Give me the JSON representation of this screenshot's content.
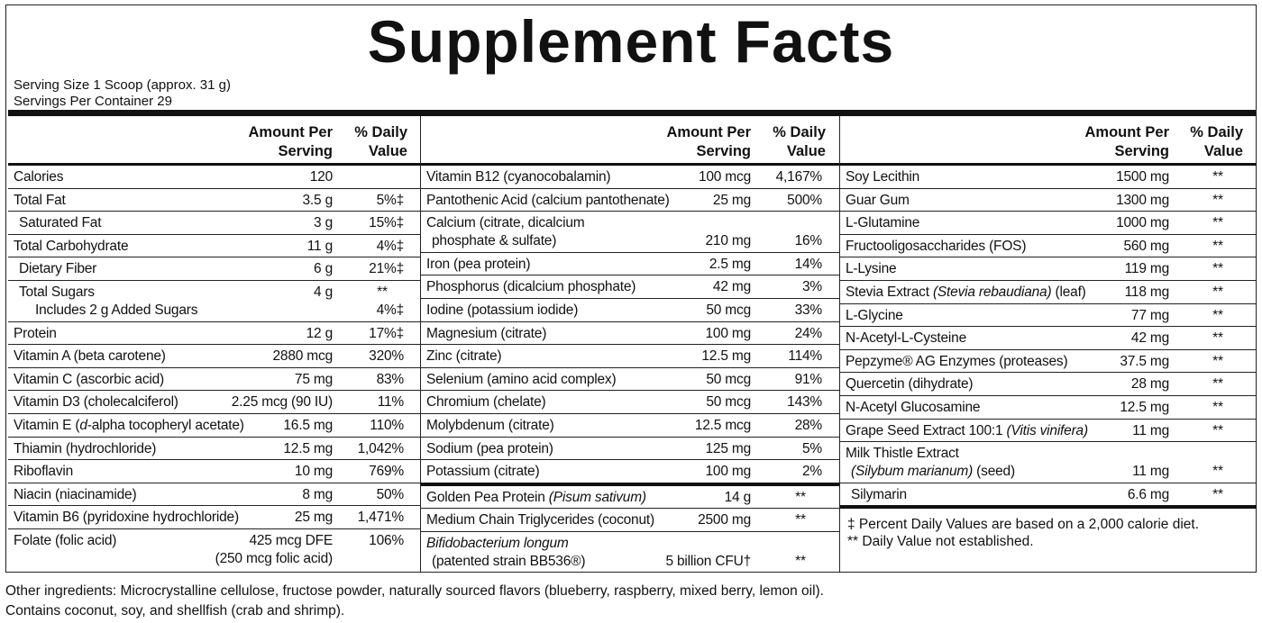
{
  "title": "Supplement Facts",
  "serving_size": "Serving Size 1 Scoop (approx. 31 g)",
  "servings_per_container": "Servings Per Container 29",
  "column_header": {
    "amount": [
      "Amount Per",
      "Serving"
    ],
    "dv": [
      "% Daily",
      "Value"
    ]
  },
  "columns": [
    {
      "sections": [
        [
          {
            "name": "Calories",
            "amount": "120"
          },
          {
            "name": "Total Fat",
            "amount": "3.5 g",
            "dv": "5%‡"
          },
          {
            "name": "Saturated Fat",
            "amount": "3 g",
            "dv": "15%‡",
            "indent": true
          },
          {
            "name": "Total Carbohydrate",
            "amount": "11 g",
            "dv": "4%‡"
          },
          {
            "name": "Dietary Fiber",
            "amount": "6 g",
            "dv": "21%‡",
            "indent": true
          },
          {
            "indent": true,
            "lines": [
              {
                "name": "Total Sugars",
                "amount": "4 g",
                "dv": "**"
              },
              {
                "name": "Includes 2 g Added Sugars",
                "dv": "4%‡"
              }
            ]
          },
          {
            "name": "Protein",
            "amount": "12 g",
            "dv": "17%‡"
          },
          {
            "name": "Vitamin A (beta carotene)",
            "amount": "2880 mcg",
            "dv": "320%"
          },
          {
            "name": "Vitamin C (ascorbic acid)",
            "amount": "75 mg",
            "dv": "83%"
          },
          {
            "name": "Vitamin D3 (cholecalciferol)",
            "amount": "2.25 mcg (90 IU)",
            "dv": "11%"
          },
          {
            "name": [
              {
                "text": "Vitamin E ("
              },
              {
                "text": "d",
                "italic": true
              },
              {
                "text": "-alpha tocopheryl acetate)"
              }
            ],
            "amount": "16.5 mg",
            "dv": "110%"
          },
          {
            "name": "Thiamin (hydrochloride)",
            "amount": "12.5 mg",
            "dv": "1,042%"
          },
          {
            "name": "Riboflavin",
            "amount": "10 mg",
            "dv": "769%"
          },
          {
            "name": "Niacin (niacinamide)",
            "amount": "8 mg",
            "dv": "50%"
          },
          {
            "name": "Vitamin B6 (pyridoxine hydrochloride)",
            "amount": "25 mg",
            "dv": "1,471%"
          },
          {
            "lines": [
              {
                "name": "Folate (folic acid)",
                "amount": "425 mcg DFE",
                "dv": "106%"
              },
              {
                "amount": "(250 mcg folic acid)"
              }
            ]
          }
        ]
      ]
    },
    {
      "sections": [
        [
          {
            "name": "Vitamin B12 (cyanocobalamin)",
            "amount": "100 mcg",
            "dv": "4,167%"
          },
          {
            "name": "Pantothenic Acid (calcium pantothenate)",
            "amount": "25 mg",
            "dv": "500%"
          },
          {
            "lines": [
              {
                "name": "Calcium (citrate, dicalcium"
              },
              {
                "name": "phosphate & sulfate)",
                "amount": "210 mg",
                "dv": "16%"
              }
            ]
          },
          {
            "name": "Iron (pea protein)",
            "amount": "2.5 mg",
            "dv": "14%"
          },
          {
            "name": "Phosphorus (dicalcium phosphate)",
            "amount": "42 mg",
            "dv": "3%"
          },
          {
            "name": "Iodine (potassium iodide)",
            "amount": "50 mcg",
            "dv": "33%"
          },
          {
            "name": "Magnesium (citrate)",
            "amount": "100 mg",
            "dv": "24%"
          },
          {
            "name": "Zinc (citrate)",
            "amount": "12.5 mg",
            "dv": "114%"
          },
          {
            "name": "Selenium (amino acid complex)",
            "amount": "50 mcg",
            "dv": "91%"
          },
          {
            "name": "Chromium (chelate)",
            "amount": "50 mcg",
            "dv": "143%"
          },
          {
            "name": "Molybdenum (citrate)",
            "amount": "12.5 mcg",
            "dv": "28%"
          },
          {
            "name": "Sodium (pea protein)",
            "amount": "125 mg",
            "dv": "5%"
          },
          {
            "name": "Potassium (citrate)",
            "amount": "100 mg",
            "dv": "2%"
          }
        ],
        [
          {
            "name": [
              {
                "text": "Golden Pea Protein "
              },
              {
                "text": "(Pisum sativum)",
                "italic": true
              }
            ],
            "amount": "14 g",
            "dv": "**"
          },
          {
            "name": "Medium Chain Triglycerides (coconut)",
            "amount": "2500 mg",
            "dv": "**"
          },
          {
            "lines": [
              {
                "name": [
                  {
                    "text": "Bifidobacterium longum",
                    "italic": true
                  }
                ]
              },
              {
                "name": "(patented strain BB536®)",
                "amount": "5 billion CFU†",
                "dv": "**"
              }
            ]
          }
        ]
      ]
    },
    {
      "sections": [
        [
          {
            "name": "Soy Lecithin",
            "amount": "1500 mg",
            "dv": "**"
          },
          {
            "name": "Guar Gum",
            "amount": "1300 mg",
            "dv": "**"
          },
          {
            "name": "L-Glutamine",
            "amount": "1000 mg",
            "dv": "**"
          },
          {
            "name": "Fructooligosaccharides (FOS)",
            "amount": "560 mg",
            "dv": "**"
          },
          {
            "name": "L-Lysine",
            "amount": "119 mg",
            "dv": "**"
          },
          {
            "name": [
              {
                "text": "Stevia Extract "
              },
              {
                "text": "(Stevia rebaudiana)",
                "italic": true
              },
              {
                "text": " (leaf)"
              }
            ],
            "amount": "118 mg",
            "dv": "**"
          },
          {
            "name": "L-Glycine",
            "amount": "77 mg",
            "dv": "**"
          },
          {
            "name": "N-Acetyl-L-Cysteine",
            "amount": "42 mg",
            "dv": "**"
          },
          {
            "name": "Pepzyme® AG Enzymes (proteases)",
            "amount": "37.5 mg",
            "dv": "**"
          },
          {
            "name": "Quercetin (dihydrate)",
            "amount": "28 mg",
            "dv": "**"
          },
          {
            "name": "N-Acetyl Glucosamine",
            "amount": "12.5 mg",
            "dv": "**"
          },
          {
            "name": [
              {
                "text": "Grape Seed Extract 100:1 "
              },
              {
                "text": "(Vitis vinifera)",
                "italic": true
              }
            ],
            "amount": "11 mg",
            "dv": "**"
          },
          {
            "lines": [
              {
                "name": "Milk Thistle Extract"
              },
              {
                "name": [
                  {
                    "text": "(Silybum marianum)",
                    "italic": true
                  },
                  {
                    "text": " (seed)"
                  }
                ],
                "amount": "11 mg",
                "dv": "**"
              }
            ]
          },
          {
            "name": "Silymarin",
            "amount": "6.6 mg",
            "dv": "**",
            "indent": true
          }
        ]
      ]
    }
  ],
  "footnotes": [
    "‡ Percent Daily Values are based on a 2,000 calorie diet.",
    "** Daily Value not established."
  ],
  "other_ingredients": "Other ingredients: Microcrystalline cellulose, fructose powder, naturally sourced flavors (blueberry, raspberry, mixed berry, lemon oil).",
  "allergens": "Contains coconut, soy, and shellfish (crab and shrimp)."
}
